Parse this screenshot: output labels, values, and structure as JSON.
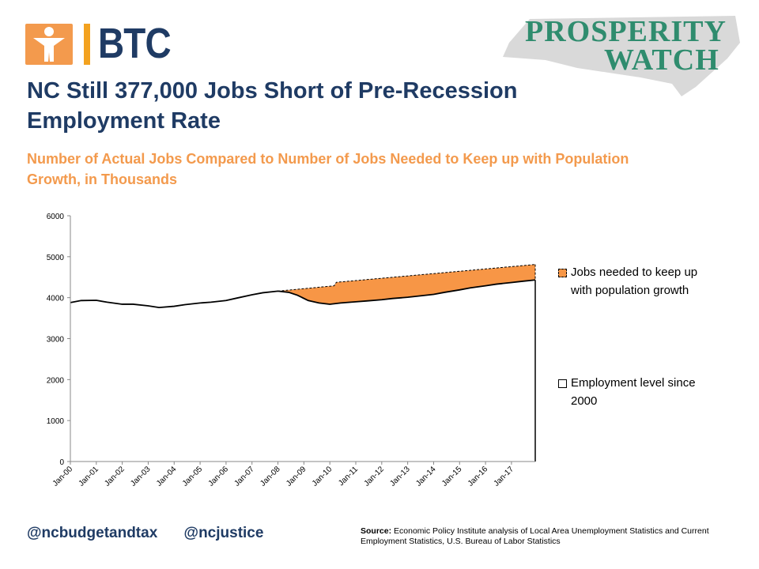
{
  "logos": {
    "btc_text": "BTC",
    "prosperity_line1": "PROSPERITY",
    "prosperity_line2": "WATCH"
  },
  "header": {
    "title": "NC Still 377,000 Jobs Short of Pre-Recession Employment Rate",
    "subtitle": "Number of Actual Jobs Compared to Number of Jobs Needed to Keep up with Population Growth, in Thousands"
  },
  "chart_data": {
    "type": "area",
    "title": "",
    "xlabel": "",
    "ylabel": "",
    "ylim": [
      0,
      6000
    ],
    "yticks": [
      0,
      1000,
      2000,
      3000,
      4000,
      5000,
      6000
    ],
    "xlim": [
      "2000-01",
      "2017-12"
    ],
    "xticks": [
      "Jan-00",
      "Jan-01",
      "Jan-02",
      "Jan-03",
      "Jan-04",
      "Jan-05",
      "Jan-06",
      "Jan-07",
      "Jan-08",
      "Jan-09",
      "Jan-10",
      "Jan-11",
      "Jan-12",
      "Jan-13",
      "Jan-14",
      "Jan-15",
      "Jan-16",
      "Jan-17"
    ],
    "grid": false,
    "legend_position": "right",
    "series": [
      {
        "name": "Jobs needed to keep up with population growth",
        "color": "#f79646",
        "points": [
          [
            "2008-01",
            4160
          ],
          [
            "2010-03",
            4290
          ],
          [
            "2010-04",
            4375
          ],
          [
            "2017-12",
            4810
          ]
        ]
      },
      {
        "name": "Employment level since 2000",
        "color": "#ffffff",
        "points": [
          [
            "2000-01",
            3880
          ],
          [
            "2000-06",
            3930
          ],
          [
            "2001-01",
            3935
          ],
          [
            "2001-06",
            3890
          ],
          [
            "2002-01",
            3840
          ],
          [
            "2002-06",
            3840
          ],
          [
            "2003-01",
            3800
          ],
          [
            "2003-06",
            3760
          ],
          [
            "2004-01",
            3790
          ],
          [
            "2004-06",
            3830
          ],
          [
            "2005-01",
            3870
          ],
          [
            "2005-06",
            3890
          ],
          [
            "2006-01",
            3930
          ],
          [
            "2006-06",
            3990
          ],
          [
            "2007-01",
            4070
          ],
          [
            "2007-06",
            4120
          ],
          [
            "2008-01",
            4160
          ],
          [
            "2008-06",
            4130
          ],
          [
            "2008-10",
            4060
          ],
          [
            "2009-03",
            3930
          ],
          [
            "2009-08",
            3870
          ],
          [
            "2010-01",
            3840
          ],
          [
            "2010-06",
            3870
          ],
          [
            "2011-01",
            3900
          ],
          [
            "2011-06",
            3920
          ],
          [
            "2012-01",
            3950
          ],
          [
            "2012-06",
            3980
          ],
          [
            "2013-01",
            4010
          ],
          [
            "2013-06",
            4040
          ],
          [
            "2014-01",
            4080
          ],
          [
            "2014-06",
            4130
          ],
          [
            "2015-01",
            4190
          ],
          [
            "2015-06",
            4240
          ],
          [
            "2016-01",
            4290
          ],
          [
            "2016-06",
            4330
          ],
          [
            "2017-01",
            4370
          ],
          [
            "2017-06",
            4400
          ],
          [
            "2017-12",
            4433
          ]
        ]
      }
    ]
  },
  "footer": {
    "handle_1": "@ncbudgetandtax",
    "handle_2": "@ncjustice",
    "source_label": "Source:",
    "source_text": " Economic Policy Institute analysis of Local Area Unemployment Statistics and Current Employment Statistics, U.S. Bureau of Labor Statistics"
  }
}
